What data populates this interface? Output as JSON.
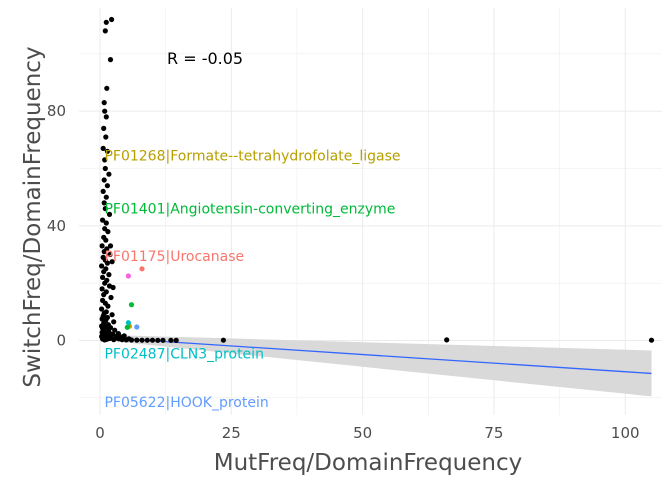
{
  "chart_data": {
    "type": "scatter",
    "title": "",
    "xlabel": "MutFreq/DomainFrequency",
    "ylabel": "SwitchFreq/DomainFrequency",
    "xlim": [
      -4,
      107
    ],
    "ylim": [
      -26,
      116
    ],
    "xticks": [
      0,
      25,
      50,
      75,
      100
    ],
    "yticks": [
      0,
      40,
      80
    ],
    "grid": true,
    "annotation": {
      "text": "R = -0.05",
      "x": 20,
      "y": 98.5
    },
    "colors": {
      "points": "#000000",
      "trend_line": "#3366ff",
      "confidence_band": "#d9d9d9",
      "grid": "#ebebeb"
    },
    "series": [
      {
        "points": [
          [
            1.2,
            111
          ],
          [
            2.2,
            112
          ],
          [
            1.0,
            108
          ],
          [
            2.0,
            98
          ],
          [
            1.3,
            88
          ],
          [
            0.8,
            83
          ],
          [
            0.9,
            80
          ],
          [
            1.2,
            78
          ],
          [
            0.7,
            74
          ],
          [
            1.1,
            71
          ],
          [
            0.6,
            67
          ],
          [
            1.4,
            66
          ],
          [
            0.9,
            63
          ],
          [
            1.0,
            60
          ],
          [
            1.7,
            58
          ],
          [
            0.8,
            56
          ],
          [
            1.4,
            54
          ],
          [
            0.6,
            52
          ],
          [
            1.2,
            50
          ],
          [
            0.8,
            48
          ],
          [
            1.0,
            46
          ],
          [
            1.8,
            44
          ],
          [
            0.5,
            42
          ],
          [
            1.2,
            41
          ],
          [
            0.9,
            39
          ],
          [
            1.5,
            38
          ],
          [
            0.7,
            36
          ],
          [
            1.1,
            35
          ],
          [
            0.4,
            33
          ],
          [
            1.3,
            32
          ],
          [
            0.8,
            31
          ],
          [
            1.9,
            30
          ],
          [
            0.6,
            29
          ],
          [
            1.0,
            28
          ],
          [
            1.4,
            27
          ],
          [
            0.3,
            26
          ],
          [
            1.1,
            25
          ],
          [
            0.7,
            24
          ],
          [
            1.7,
            23
          ],
          [
            0.5,
            22
          ],
          [
            1.3,
            21
          ],
          [
            0.9,
            20
          ],
          [
            1.8,
            19
          ],
          [
            0.4,
            18
          ],
          [
            1.2,
            17
          ],
          [
            0.7,
            16
          ],
          [
            2.1,
            15
          ],
          [
            0.5,
            14
          ],
          [
            1.0,
            13
          ],
          [
            1.5,
            12
          ],
          [
            0.3,
            11
          ],
          [
            1.2,
            10
          ],
          [
            0.8,
            9.5
          ],
          [
            2.3,
            9
          ],
          [
            0.6,
            8.5
          ],
          [
            1.4,
            8
          ],
          [
            0.4,
            7.5
          ],
          [
            1.1,
            7
          ],
          [
            2.6,
            6.5
          ],
          [
            0.7,
            6
          ],
          [
            1.6,
            5.5
          ],
          [
            0.3,
            5
          ],
          [
            1.0,
            4.8
          ],
          [
            2.0,
            4.5
          ],
          [
            0.5,
            4.2
          ],
          [
            1.3,
            4
          ],
          [
            2.8,
            3.6
          ],
          [
            0.8,
            3.3
          ],
          [
            1.7,
            3
          ],
          [
            0.4,
            2.8
          ],
          [
            1.1,
            2.5
          ],
          [
            2.4,
            2.2
          ],
          [
            0.6,
            2
          ],
          [
            1.5,
            1.8
          ],
          [
            3.2,
            1.6
          ],
          [
            0.3,
            1.4
          ],
          [
            1.0,
            1.2
          ],
          [
            2.1,
            1
          ],
          [
            0.7,
            0.9
          ],
          [
            1.8,
            0.7
          ],
          [
            3.6,
            0.6
          ],
          [
            0.5,
            0.5
          ],
          [
            1.3,
            0.4
          ],
          [
            2.6,
            0.3
          ],
          [
            4.2,
            0.3
          ],
          [
            0.9,
            0.2
          ],
          [
            5.0,
            0.2
          ],
          [
            6.0,
            0.15
          ],
          [
            7.0,
            0.12
          ],
          [
            8.0,
            0.1
          ],
          [
            9.0,
            0.1
          ],
          [
            10.0,
            0.08
          ],
          [
            11.0,
            0.06
          ],
          [
            12.0,
            0.05
          ],
          [
            13.5,
            0.05
          ],
          [
            14.5,
            0.03
          ],
          [
            3.0,
            0.8
          ],
          [
            4.0,
            1.2
          ],
          [
            5.5,
            0.6
          ],
          [
            3.5,
            2.4
          ],
          [
            4.6,
            1.6
          ],
          [
            2.3,
            27.5
          ],
          [
            2.0,
            33
          ],
          [
            2.5,
            18.5
          ],
          [
            23.5,
            0.1
          ],
          [
            66,
            0.2
          ],
          [
            105,
            0.1
          ]
        ]
      },
      {
        "label": "PF01268|Formate--tetrahydrofolate_ligase",
        "color": "#b79f00",
        "label_x": 0.85,
        "label_y": 64.5,
        "points": [
          [
            5.6,
            5
          ]
        ]
      },
      {
        "label": "PF01401|Angiotensin-converting_enzyme",
        "color": "#00ba38",
        "label_x": 0.85,
        "label_y": 46,
        "points": [
          [
            6.0,
            12.5
          ],
          [
            5.2,
            4.6
          ]
        ]
      },
      {
        "label": "PF01175|Urocanase",
        "color": "#f8766d",
        "label_x": 0.85,
        "label_y": 29.5,
        "points": [
          [
            8.0,
            25
          ]
        ]
      },
      {
        "label": "PF02487|CLN3_protein",
        "color": "#00bfc4",
        "label_x": 0.85,
        "label_y": -4.5,
        "points": [
          [
            5.4,
            6.2
          ]
        ]
      },
      {
        "label": "PF05622|HOOK_protein",
        "color": "#619cff",
        "label_x": 0.85,
        "label_y": -21.5,
        "points": [
          [
            7.0,
            4.7
          ]
        ]
      },
      {
        "label": "",
        "color": "#f564e3",
        "points": [
          [
            5.4,
            22.5
          ]
        ]
      }
    ],
    "trend": {
      "x": [
        0,
        105
      ],
      "y": [
        1.1,
        -11.5
      ],
      "ci_lower": [
        0.2,
        -19.5
      ],
      "ci_upper": [
        2.0,
        -3.5
      ]
    }
  }
}
